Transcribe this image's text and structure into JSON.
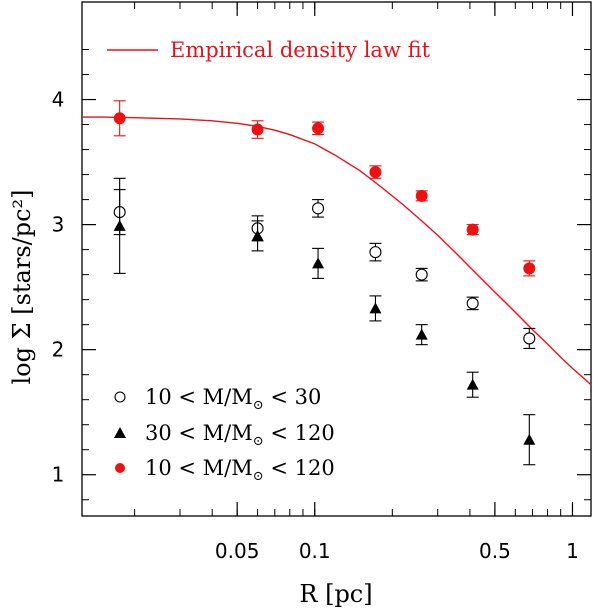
{
  "colors": {
    "fit": "#e8121b",
    "total": "#ee1111",
    "axis": "#000000"
  },
  "chart_data": {
    "type": "scatter",
    "xlabel_text": "R [pc]",
    "ylabel_text": "log Σ  [stars/pc²]",
    "xscale": "log",
    "xlim": [
      0.0125,
      1.18
    ],
    "ylim": [
      0.67,
      4.78
    ],
    "x_ticks": [
      {
        "value": 0.05,
        "label": "0.05"
      },
      {
        "value": 0.1,
        "label": "0.1"
      },
      {
        "value": 0.5,
        "label": "0.5"
      },
      {
        "value": 1,
        "label": "1"
      }
    ],
    "y_ticks": [
      {
        "value": 1,
        "label": "1"
      },
      {
        "value": 2,
        "label": "2"
      },
      {
        "value": 3,
        "label": "3"
      },
      {
        "value": 4,
        "label": "4"
      }
    ],
    "legend_placement": "bottom-left",
    "fit": {
      "name": "Empirical density law fit",
      "x": [
        0.0125,
        0.015,
        0.02,
        0.03,
        0.04,
        0.05,
        0.06,
        0.07,
        0.08,
        0.1,
        0.12,
        0.15,
        0.18,
        0.22,
        0.26,
        0.3,
        0.35,
        0.4,
        0.5,
        0.6,
        0.7,
        0.8,
        0.9,
        1.0,
        1.18
      ],
      "y": [
        3.86,
        3.86,
        3.855,
        3.845,
        3.83,
        3.81,
        3.785,
        3.755,
        3.72,
        3.645,
        3.555,
        3.43,
        3.305,
        3.16,
        3.03,
        2.915,
        2.78,
        2.66,
        2.46,
        2.3,
        2.16,
        2.045,
        1.94,
        1.85,
        1.72
      ]
    },
    "series": [
      {
        "name": "10 < M/M",
        "name_sub": "⊙",
        "name_tail": " < 30",
        "marker": "open-circle",
        "points": [
          {
            "x": 0.0175,
            "y": 3.1,
            "err": 0.18
          },
          {
            "x": 0.06,
            "y": 2.97,
            "err": 0.1
          },
          {
            "x": 0.103,
            "y": 3.13,
            "err": 0.07
          },
          {
            "x": 0.172,
            "y": 2.78,
            "err": 0.07
          },
          {
            "x": 0.26,
            "y": 2.6,
            "err": 0.05
          },
          {
            "x": 0.41,
            "y": 2.37,
            "err": 0.05
          },
          {
            "x": 0.68,
            "y": 2.09,
            "err": 0.08
          }
        ]
      },
      {
        "name": "30 < M/M",
        "name_sub": "⊙",
        "name_tail": " < 120",
        "marker": "filled-triangle",
        "points": [
          {
            "x": 0.0175,
            "y": 2.99,
            "err": 0.38
          },
          {
            "x": 0.06,
            "y": 2.91,
            "err": 0.12
          },
          {
            "x": 0.103,
            "y": 2.69,
            "err": 0.12
          },
          {
            "x": 0.172,
            "y": 2.33,
            "err": 0.1
          },
          {
            "x": 0.26,
            "y": 2.12,
            "err": 0.08
          },
          {
            "x": 0.41,
            "y": 1.72,
            "err": 0.1
          },
          {
            "x": 0.68,
            "y": 1.28,
            "err": 0.2
          }
        ]
      },
      {
        "name": "10 < M/M",
        "name_sub": "⊙",
        "name_tail": " < 120",
        "marker": "filled-circle-red",
        "points": [
          {
            "x": 0.0175,
            "y": 3.85,
            "err": 0.14
          },
          {
            "x": 0.06,
            "y": 3.76,
            "err": 0.07
          },
          {
            "x": 0.103,
            "y": 3.77,
            "err": 0.05
          },
          {
            "x": 0.172,
            "y": 3.42,
            "err": 0.05
          },
          {
            "x": 0.26,
            "y": 3.23,
            "err": 0.04
          },
          {
            "x": 0.41,
            "y": 2.96,
            "err": 0.04
          },
          {
            "x": 0.68,
            "y": 2.65,
            "err": 0.06
          }
        ]
      }
    ]
  }
}
